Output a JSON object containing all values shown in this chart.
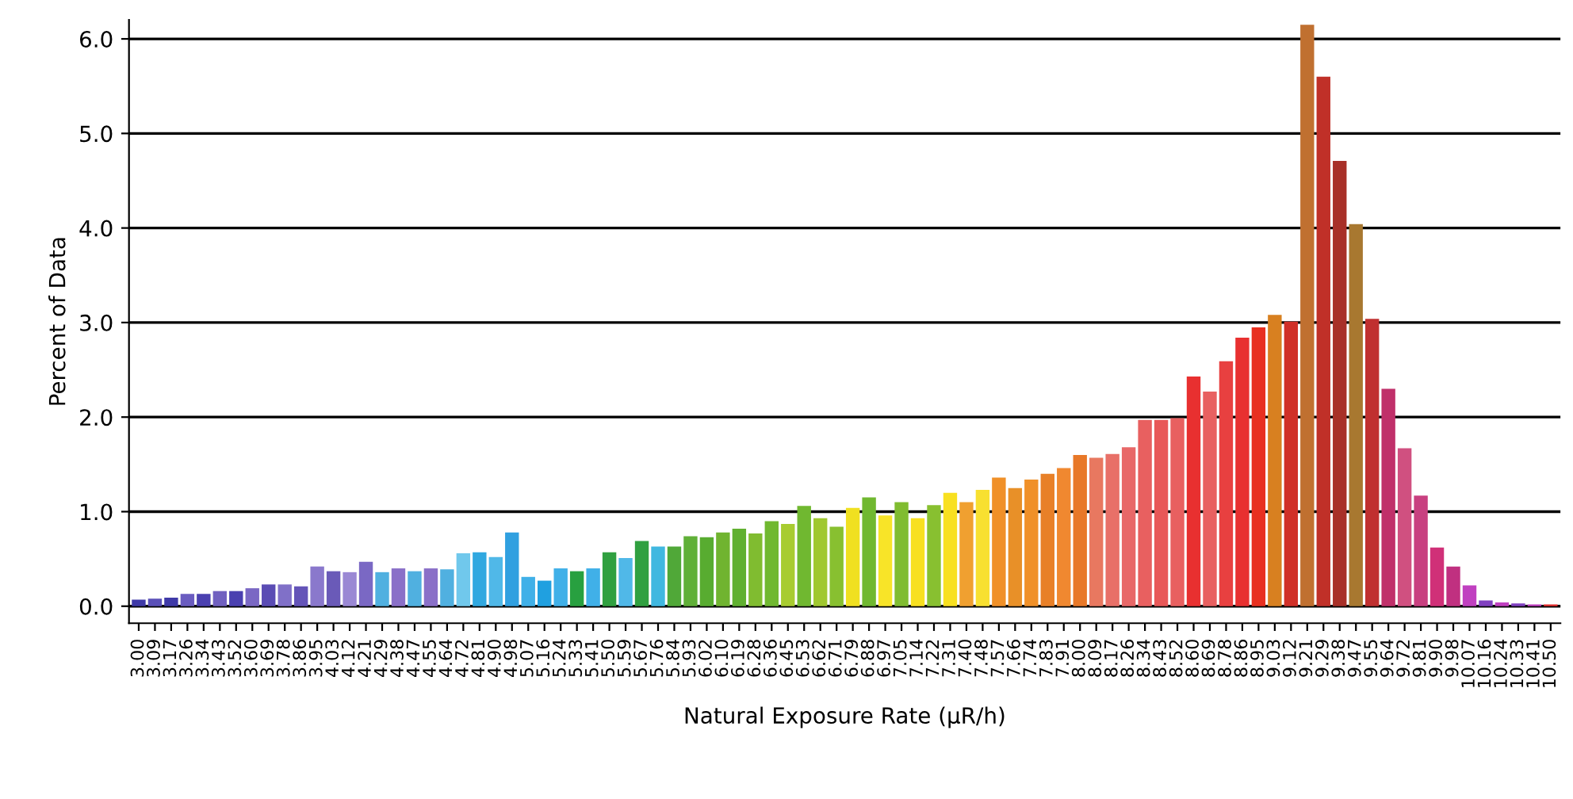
{
  "chart_data": {
    "type": "bar",
    "xlabel": "Natural Exposure Rate (μR/h)",
    "ylabel": "Percent of Data",
    "categories": [
      "3.00",
      "3.09",
      "3.17",
      "3.26",
      "3.34",
      "3.43",
      "3.52",
      "3.60",
      "3.69",
      "3.78",
      "3.86",
      "3.95",
      "4.03",
      "4.12",
      "4.21",
      "4.29",
      "4.38",
      "4.47",
      "4.55",
      "4.64",
      "4.72",
      "4.81",
      "4.90",
      "4.98",
      "5.07",
      "5.16",
      "5.24",
      "5.33",
      "5.41",
      "5.50",
      "5.59",
      "5.67",
      "5.76",
      "5.84",
      "5.93",
      "6.02",
      "6.10",
      "6.19",
      "6.28",
      "6.36",
      "6.45",
      "6.53",
      "6.62",
      "6.71",
      "6.79",
      "6.88",
      "6.97",
      "7.05",
      "7.14",
      "7.22",
      "7.31",
      "7.40",
      "7.48",
      "7.57",
      "7.66",
      "7.74",
      "7.83",
      "7.91",
      "8.00",
      "8.09",
      "8.17",
      "8.26",
      "8.34",
      "8.43",
      "8.52",
      "8.60",
      "8.69",
      "8.78",
      "8.86",
      "8.95",
      "9.03",
      "9.12",
      "9.21",
      "9.29",
      "9.38",
      "9.47",
      "9.55",
      "9.64",
      "9.72",
      "9.81",
      "9.90",
      "9.98",
      "10.07",
      "10.16",
      "10.24",
      "10.33",
      "10.41",
      "10.50"
    ],
    "values": [
      0.07,
      0.08,
      0.09,
      0.13,
      0.13,
      0.16,
      0.16,
      0.19,
      0.23,
      0.23,
      0.21,
      0.42,
      0.37,
      0.36,
      0.47,
      0.36,
      0.4,
      0.37,
      0.4,
      0.39,
      0.56,
      0.57,
      0.52,
      0.78,
      0.31,
      0.27,
      0.4,
      0.37,
      0.4,
      0.57,
      0.51,
      0.69,
      0.63,
      0.63,
      0.74,
      0.73,
      0.78,
      0.82,
      0.77,
      0.9,
      0.87,
      1.06,
      0.93,
      0.84,
      1.04,
      1.15,
      0.96,
      1.1,
      0.93,
      1.07,
      1.2,
      1.1,
      1.23,
      1.36,
      1.25,
      1.34,
      1.4,
      1.46,
      1.6,
      1.57,
      1.61,
      1.68,
      1.97,
      1.97,
      1.99,
      2.43,
      2.27,
      2.59,
      2.84,
      2.95,
      3.08,
      3.01,
      6.15,
      5.6,
      4.71,
      4.04,
      3.04,
      2.3,
      1.67,
      1.17,
      0.62,
      0.42,
      0.22,
      0.06,
      0.04,
      0.03,
      0.02,
      0.02
    ],
    "colors": [
      "#3f3aa8",
      "#5a50b8",
      "#3f3aa8",
      "#6a5cc0",
      "#4a40b0",
      "#7060c0",
      "#4a40b0",
      "#7a68c4",
      "#5a4cb4",
      "#8070c8",
      "#6454b8",
      "#8a78cc",
      "#6a5ab8",
      "#9a88d4",
      "#7a68c4",
      "#50b0e0",
      "#8a70c8",
      "#50b0e0",
      "#8a70c8",
      "#50b0e0",
      "#70c8ec",
      "#30a8e0",
      "#50b8e8",
      "#30a0e0",
      "#40b0e8",
      "#20a0e0",
      "#40b0e8",
      "#28a040",
      "#40b0e8",
      "#30a040",
      "#50b8e8",
      "#30a040",
      "#40b8e0",
      "#50a838",
      "#60b038",
      "#58ac30",
      "#70b430",
      "#60b030",
      "#80bc30",
      "#70b830",
      "#a8cc30",
      "#70b830",
      "#a0c830",
      "#88c030",
      "#f0e020",
      "#70b830",
      "#f8e428",
      "#80bc30",
      "#f8e020",
      "#88c030",
      "#f8e020",
      "#f0a030",
      "#f8e030",
      "#f09028",
      "#e89028",
      "#f09028",
      "#e88028",
      "#f08830",
      "#e87828",
      "#e87860",
      "#e87068",
      "#e86868",
      "#e86060",
      "#e85858",
      "#e86060",
      "#e83030",
      "#e86060",
      "#e84040",
      "#e83030",
      "#e83020",
      "#d88020",
      "#d03028",
      "#c07030",
      "#c03028",
      "#a83028",
      "#a87830",
      "#c03030",
      "#c0306a",
      "#d05080",
      "#c84080",
      "#d03078",
      "#c03080",
      "#c040c0",
      "#8040c0",
      "#c040c0",
      "#8040c0",
      "#c040c0",
      "#e83030"
    ],
    "ylim": [
      -0.18,
      6.2
    ],
    "yticks": [
      {
        "value": 0,
        "label": "0.0"
      },
      {
        "value": 1,
        "label": "1.0"
      },
      {
        "value": 2,
        "label": "2.0"
      },
      {
        "value": 3,
        "label": "3.0"
      },
      {
        "value": 4,
        "label": "4.0"
      },
      {
        "value": 5,
        "label": "5.0"
      },
      {
        "value": 6,
        "label": "6.0"
      }
    ],
    "grid": "y",
    "legend": false
  }
}
